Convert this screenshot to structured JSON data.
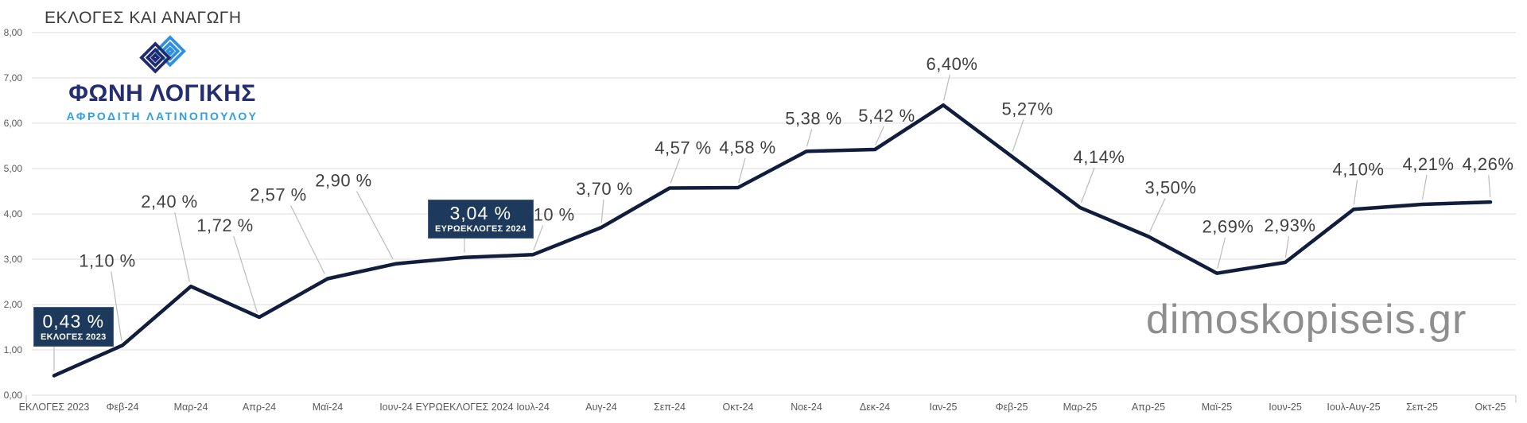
{
  "header": {
    "title": "ΕΚΛΟΓΕΣ ΚΑΙ ΑΝΑΓΩΓΗ"
  },
  "logo": {
    "name": "ΦΩΝΗ ΛΟΓΙΚΗΣ",
    "subtitle": "ΑΦΡΟΔΙΤΗ ΛΑΤΙΝΟΠΟΥΛΟΥ",
    "icon": "interlocked-diamonds-icon",
    "name_color": "#232e72",
    "subtitle_color": "#2d9fe3",
    "icon_navy": "#1e2a72",
    "icon_blue": "#2f8fe3"
  },
  "watermark": "dimoskopiseis.gr",
  "callouts": [
    {
      "value_label": "0,43 %",
      "caption": "ΕΚΛΟΓΕΣ 2023",
      "bg": "#1d3a5c"
    },
    {
      "value_label": "3,04 %",
      "caption": "ΕΥΡΩΕΚΛΟΓΕΣ 2024",
      "bg": "#1d3a5c"
    }
  ],
  "chart_data": {
    "type": "line",
    "title": "ΕΚΛΟΓΕΣ ΚΑΙ ΑΝΑΓΩΓΗ",
    "categories": [
      "ΕΚΛΟΓΕΣ 2023",
      "Φεβ-24",
      "Μαρ-24",
      "Απρ-24",
      "Μαϊ-24",
      "Ιουν-24",
      "ΕΥΡΩΕΚΛΟΓΕΣ 2024",
      "Ιουλ-24",
      "Αυγ-24",
      "Σεπ-24",
      "Οκτ-24",
      "Νοε-24",
      "Δεκ-24",
      "Ιαν-25",
      "Φεβ-25",
      "Μαρ-25",
      "Απρ-25",
      "Μαϊ-25",
      "Ιουν-25",
      "Ιουλ-Αυγ-25",
      "Σεπ-25",
      "Οκτ-25"
    ],
    "values": [
      0.43,
      1.1,
      2.4,
      1.72,
      2.57,
      2.9,
      3.04,
      3.1,
      3.7,
      4.57,
      4.58,
      5.38,
      5.42,
      6.4,
      5.27,
      4.14,
      3.5,
      2.69,
      2.93,
      4.1,
      4.21,
      4.26
    ],
    "point_labels": [
      "0,43 %",
      "1,10 %",
      "2,40 %",
      "1,72 %",
      "2,57 %",
      "2,90 %",
      "3,04 %",
      "3,10 %",
      "3,70 %",
      "4,57 %",
      "4,58 %",
      "5,38 %",
      "5,42 %",
      "6,40%",
      "5,27%",
      "4,14%",
      "3,50%",
      "2,69%",
      "2,93%",
      "4,10%",
      "4,21%",
      "4,26%"
    ],
    "callout_indices": [
      0,
      6
    ],
    "y_tick_labels": [
      "0,00",
      "1,00",
      "2,00",
      "3,00",
      "4,00",
      "5,00",
      "6,00",
      "7,00",
      "8,00"
    ],
    "ylim": [
      0,
      8
    ],
    "grid": "horizontal",
    "legend": "none",
    "line_color": "#101d3c",
    "label_color": "#414141",
    "axis_text_color": "#595959",
    "gridline_color": "#e3e3e3",
    "leader_color": "#bcbcbc"
  }
}
